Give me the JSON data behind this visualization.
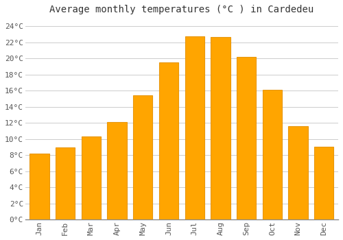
{
  "title": "Average monthly temperatures (°C ) in Cardedeu",
  "months": [
    "Jan",
    "Feb",
    "Mar",
    "Apr",
    "May",
    "Jun",
    "Jul",
    "Aug",
    "Sep",
    "Oct",
    "Nov",
    "Dec"
  ],
  "values": [
    8.2,
    8.9,
    10.3,
    12.1,
    15.4,
    19.5,
    22.7,
    22.6,
    20.2,
    16.1,
    11.6,
    9.0
  ],
  "bar_color_main": "#FFA500",
  "bar_color_edge": "#E8960A",
  "ylim": [
    0,
    25
  ],
  "yticks": [
    0,
    2,
    4,
    6,
    8,
    10,
    12,
    14,
    16,
    18,
    20,
    22,
    24
  ],
  "ytick_labels": [
    "0°C",
    "2°C",
    "4°C",
    "6°C",
    "8°C",
    "10°C",
    "12°C",
    "14°C",
    "16°C",
    "18°C",
    "20°C",
    "22°C",
    "24°C"
  ],
  "grid_color": "#cccccc",
  "background_color": "#ffffff",
  "title_fontsize": 10,
  "tick_fontsize": 8,
  "bar_width": 0.75
}
